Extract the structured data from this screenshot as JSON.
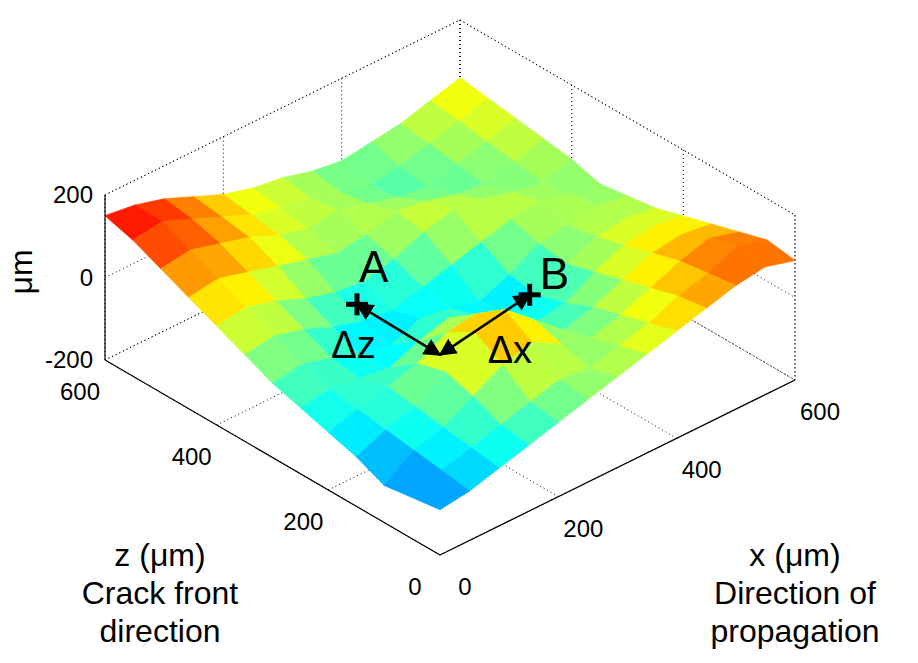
{
  "chart_data": {
    "type": "surface",
    "xlabel": "x (μm)",
    "xdescription": "Direction of propagation",
    "zlabel": "z (μm)",
    "zdescription": "Crack front direction",
    "ylabel": "μm",
    "xlim": [
      0,
      600
    ],
    "xticks": [
      0,
      200,
      400,
      600
    ],
    "zlim": [
      0,
      600
    ],
    "zticks": [
      0,
      200,
      400,
      600
    ],
    "ylim": [
      -200,
      200
    ],
    "yticks": [
      -200,
      0,
      200
    ],
    "grid": true,
    "x": [
      0,
      50,
      100,
      150,
      200,
      250,
      300,
      350,
      400,
      450,
      500,
      550,
      600
    ],
    "z": [
      0,
      50,
      100,
      150,
      200,
      250,
      300,
      350,
      400,
      450,
      500,
      550,
      600
    ],
    "heights": [
      [
        -90,
        -80,
        -60,
        -40,
        -20,
        0,
        20,
        40,
        60,
        80,
        100,
        110,
        90
      ],
      [
        -100,
        -70,
        -50,
        -30,
        -10,
        10,
        0,
        20,
        40,
        70,
        90,
        120,
        100
      ],
      [
        -110,
        -60,
        -40,
        0,
        40,
        60,
        20,
        0,
        20,
        50,
        80,
        100,
        80
      ],
      [
        -80,
        -50,
        -30,
        20,
        80,
        100,
        40,
        -20,
        0,
        30,
        60,
        70,
        60
      ],
      [
        -60,
        -40,
        -20,
        0,
        40,
        50,
        0,
        -40,
        -30,
        10,
        40,
        50,
        40
      ],
      [
        -40,
        -30,
        -40,
        -50,
        -20,
        0,
        -30,
        -60,
        -50,
        -10,
        20,
        30,
        20
      ],
      [
        -20,
        -10,
        -30,
        -60,
        -70,
        -40,
        -50,
        -70,
        -40,
        0,
        10,
        20,
        10
      ],
      [
        10,
        20,
        0,
        -30,
        -50,
        -60,
        -40,
        -20,
        0,
        20,
        30,
        10,
        0
      ],
      [
        40,
        50,
        30,
        0,
        -20,
        -30,
        -10,
        20,
        40,
        30,
        10,
        0,
        20
      ],
      [
        70,
        80,
        60,
        40,
        20,
        0,
        10,
        30,
        20,
        0,
        -10,
        10,
        30
      ],
      [
        100,
        110,
        90,
        70,
        40,
        20,
        30,
        10,
        -10,
        -20,
        0,
        20,
        40
      ],
      [
        130,
        140,
        110,
        80,
        50,
        30,
        20,
        0,
        -20,
        -10,
        10,
        30,
        50
      ],
      [
        150,
        140,
        120,
        90,
        60,
        40,
        30,
        10,
        0,
        10,
        20,
        40,
        60
      ]
    ],
    "points": [
      {
        "label": "A",
        "x": 156,
        "z": 314,
        "y": 50
      },
      {
        "label": "B",
        "x": 329,
        "z": 188,
        "y": 50
      }
    ],
    "meeting_point": {
      "x": 185,
      "z": 196,
      "y": 0
    },
    "arrows": [
      {
        "label": "Δz",
        "from": "A"
      },
      {
        "label": "Δx",
        "from": "B"
      }
    ]
  }
}
